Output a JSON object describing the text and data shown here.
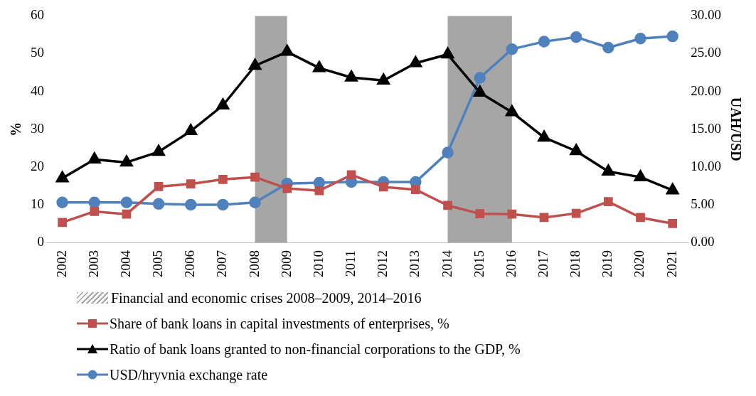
{
  "chart_data": {
    "type": "line",
    "ylabel": "%",
    "y2label": "UAH/USD",
    "categories": [
      "2002",
      "2003",
      "2004",
      "2005",
      "2006",
      "2007",
      "2008",
      "2009",
      "2010",
      "2011",
      "2012",
      "2013",
      "2014",
      "2015",
      "2016",
      "2017",
      "2018",
      "2019",
      "2020",
      "2021"
    ],
    "series": [
      {
        "name": "Share of bank loans in capital investments of enterprises, %",
        "color": "#c0504d",
        "marker": "square",
        "values": [
          5.3,
          8.2,
          7.5,
          14.8,
          15.5,
          16.7,
          17.3,
          14.3,
          13.7,
          17.9,
          14.7,
          14.0,
          9.8,
          7.6,
          7.5,
          6.6,
          7.7,
          10.8,
          6.6,
          5.0
        ]
      },
      {
        "name": "Ratio of bank loans granted to non-financial corporations to the GDP, %",
        "color": "#000000",
        "marker": "triangle",
        "values": [
          17.0,
          22.0,
          21.2,
          24.0,
          29.5,
          36.3,
          46.8,
          50.5,
          46.2,
          43.7,
          42.9,
          47.5,
          49.8,
          39.7,
          34.5,
          27.8,
          24.2,
          18.8,
          17.3,
          13.8
        ]
      },
      {
        "name": "USD/hryvnia exchange rate",
        "color": "#4f81bd",
        "marker": "circle",
        "axis": "y2",
        "values": [
          5.3,
          5.3,
          5.3,
          5.1,
          5.0,
          5.0,
          5.3,
          7.8,
          7.9,
          8.0,
          8.0,
          8.0,
          11.9,
          21.8,
          25.6,
          26.6,
          27.2,
          25.8,
          27.0,
          27.3
        ]
      }
    ],
    "bands": [
      {
        "axis": "x",
        "from": "2008",
        "to": "2009",
        "label": "Financial and economic crises 2008–2009, 2014–2016",
        "color": "#a6a6a6"
      },
      {
        "axis": "x",
        "from": "2014",
        "to": "2016",
        "color": "#a6a6a6"
      }
    ],
    "ylim": [
      0,
      60
    ],
    "yticks": [
      0,
      10,
      20,
      30,
      40,
      50,
      60
    ],
    "y2lim": [
      0,
      30
    ],
    "y2ticks": [
      {
        "value": 0,
        "label": "0.00"
      },
      {
        "value": 5,
        "label": "5.00"
      },
      {
        "value": 10,
        "label": "10.00"
      },
      {
        "value": 15,
        "label": "15.00"
      },
      {
        "value": 20,
        "label": "20.00"
      },
      {
        "value": 25,
        "label": "25.00"
      },
      {
        "value": 30,
        "label": "30.00"
      }
    ],
    "grid": false,
    "legend": "bottom",
    "line_style": "solid"
  }
}
